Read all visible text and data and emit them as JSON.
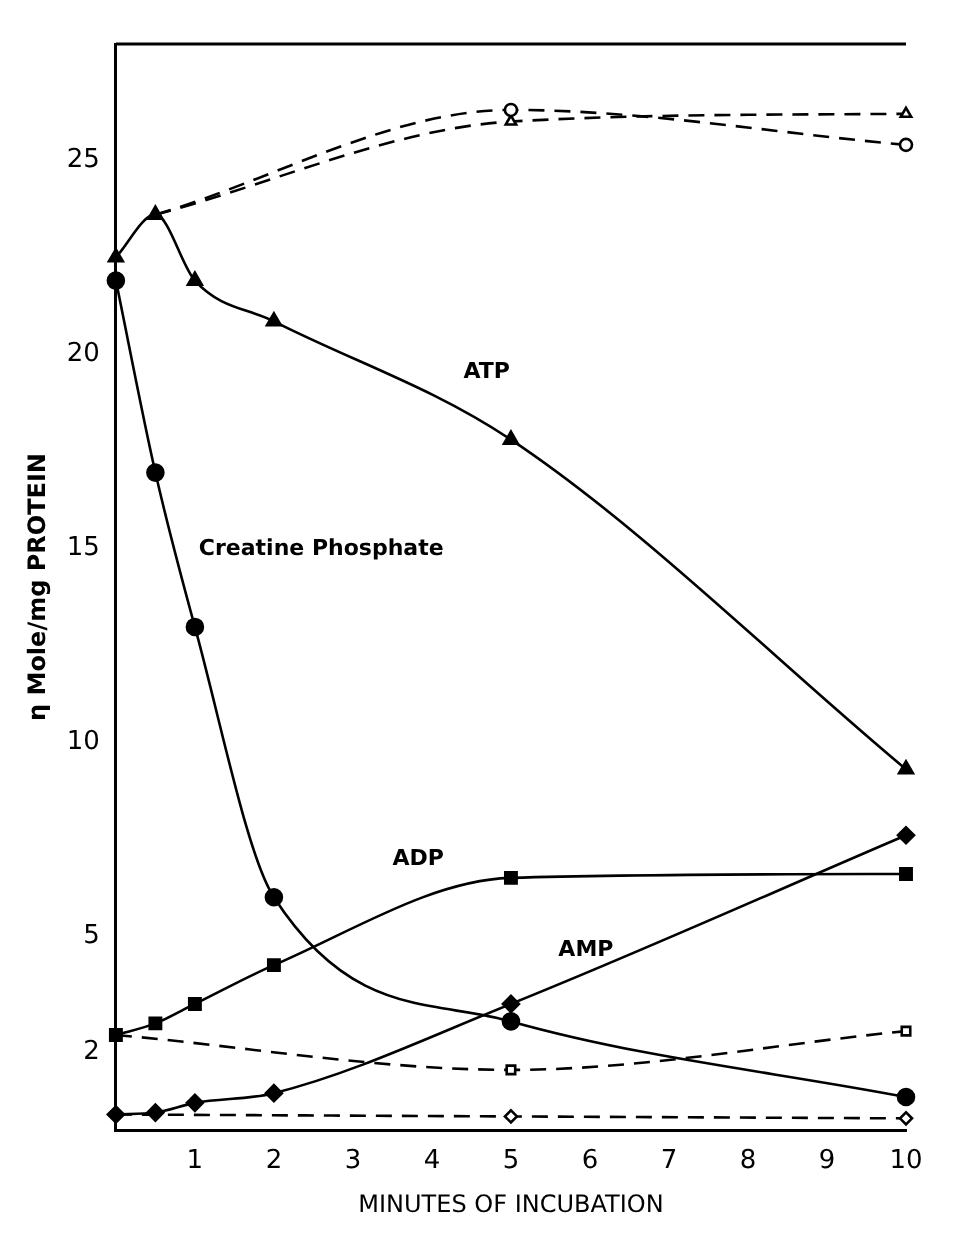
{
  "chart_data": {
    "type": "line",
    "xlabel": "MINUTES OF INCUBATION",
    "ylabel": "η Mole/mg PROTEIN",
    "xlim": [
      0,
      10
    ],
    "xticks": [
      1,
      2,
      3,
      4,
      5,
      6,
      7,
      8,
      9,
      10
    ],
    "ylim": [
      0,
      28
    ],
    "yticks": [
      2,
      5,
      10,
      15,
      20,
      25
    ],
    "grid": false,
    "legend": false,
    "series": [
      {
        "name": "ATP",
        "color": "#000000",
        "marker": "triangle",
        "line_style": "solid",
        "x": [
          0,
          0.5,
          1,
          2,
          5,
          10
        ],
        "values": [
          22.5,
          23.6,
          21.9,
          20.85,
          17.8,
          9.3
        ]
      },
      {
        "color": "#000000",
        "marker": "triangle",
        "line_style": "dashed",
        "x": [
          0.5,
          5,
          10
        ],
        "values": [
          23.6,
          26.0,
          26.2
        ]
      },
      {
        "color": "#000000",
        "marker": "circle",
        "line_style": "dashed",
        "x": [
          0.5,
          5,
          10
        ],
        "values": [
          23.6,
          26.3,
          25.4
        ]
      },
      {
        "name": "Creatine Phosphate",
        "color": "#000000",
        "marker": "circle",
        "line_style": "solid",
        "x": [
          0,
          0.5,
          1,
          2,
          5,
          10
        ],
        "values": [
          21.9,
          16.95,
          12.97,
          6.0,
          2.8,
          0.85
        ]
      },
      {
        "name": "ADP",
        "color": "#000000",
        "marker": "square",
        "line_style": "solid",
        "x": [
          0,
          0.5,
          1,
          2,
          5,
          10
        ],
        "values": [
          2.45,
          2.75,
          3.25,
          4.25,
          6.5,
          6.6
        ]
      },
      {
        "color": "#000000",
        "marker": "square",
        "line_style": "dashed",
        "x": [
          0,
          5,
          10
        ],
        "values": [
          2.45,
          1.55,
          2.55
        ]
      },
      {
        "name": "AMP",
        "color": "#000000",
        "marker": "diamond",
        "line_style": "solid",
        "x": [
          0,
          0.5,
          1,
          2,
          5,
          10
        ],
        "values": [
          0.4,
          0.45,
          0.7,
          0.95,
          3.25,
          7.6
        ]
      },
      {
        "color": "#000000",
        "marker": "diamond",
        "line_style": "dashed",
        "x": [
          0,
          5,
          10
        ],
        "values": [
          0.4,
          0.35,
          0.3
        ]
      }
    ]
  }
}
